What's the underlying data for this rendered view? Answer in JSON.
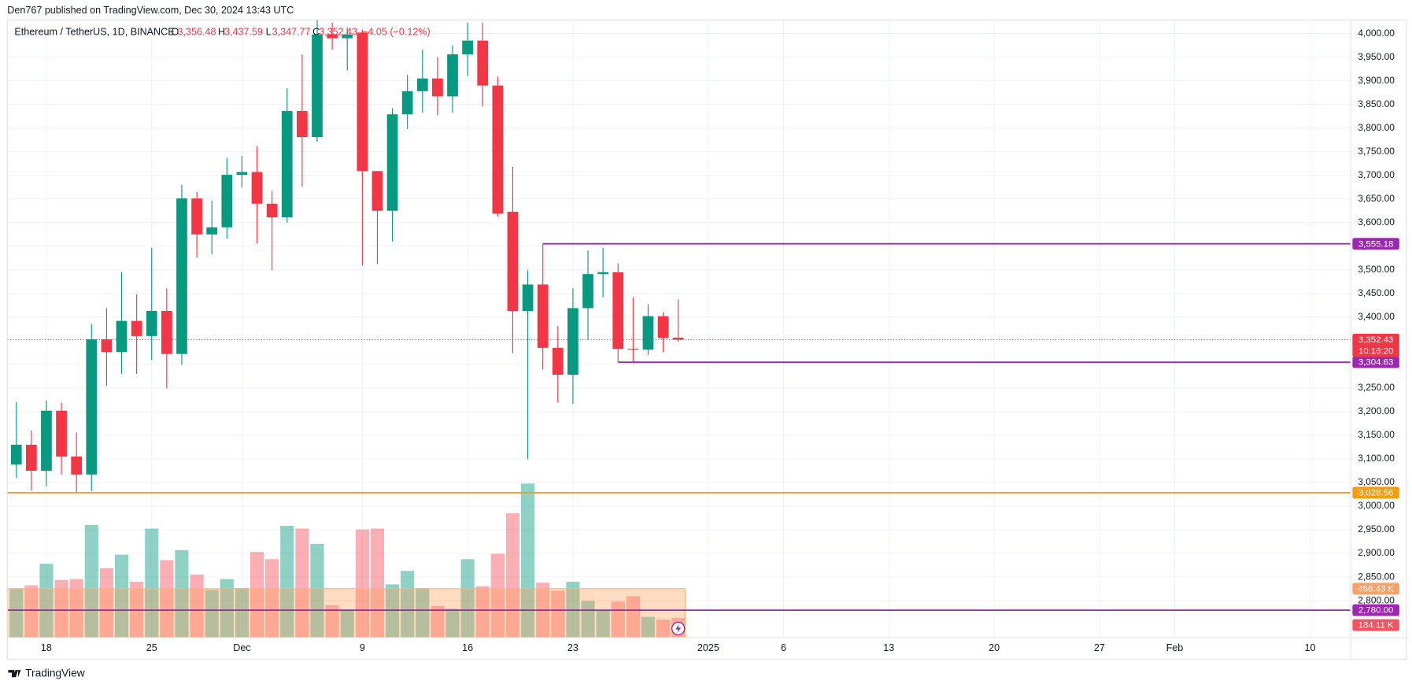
{
  "chart_data": {
    "type": "candlestick",
    "header": "Den767 published on TradingView.com, Dec 30, 2024 13:43 UTC",
    "title": "Ethereum / TetherUS, 1D, BINANCE",
    "ohlc_letters": [
      "O",
      "H",
      "L",
      "C"
    ],
    "last_labels": [
      "3,356.48",
      "3,437.59",
      "3,347.77",
      "3,352.43"
    ],
    "change_label": "−4.05 (−0.12%)",
    "countdown": "10:16:20",
    "brand": "TradingView",
    "up_color": "#089981",
    "down_color": "#f23645",
    "x": [
      "2024-11-16",
      "2024-11-17",
      "2024-11-18",
      "2024-11-19",
      "2024-11-20",
      "2024-11-21",
      "2024-11-22",
      "2024-11-23",
      "2024-11-24",
      "2024-11-25",
      "2024-11-26",
      "2024-11-27",
      "2024-11-28",
      "2024-11-29",
      "2024-11-30",
      "2024-12-01",
      "2024-12-02",
      "2024-12-03",
      "2024-12-04",
      "2024-12-05",
      "2024-12-06",
      "2024-12-07",
      "2024-12-08",
      "2024-12-09",
      "2024-12-10",
      "2024-12-11",
      "2024-12-12",
      "2024-12-13",
      "2024-12-14",
      "2024-12-15",
      "2024-12-16",
      "2024-12-17",
      "2024-12-18",
      "2024-12-19",
      "2024-12-20",
      "2024-12-21",
      "2024-12-22",
      "2024-12-23",
      "2024-12-24",
      "2024-12-25",
      "2024-12-26",
      "2024-12-27",
      "2024-12-28",
      "2024-12-29",
      "2024-12-30"
    ],
    "open": [
      3088,
      3130,
      3075,
      3202,
      3105,
      3067,
      3353,
      3326,
      3392,
      3360,
      3413,
      3322,
      3651,
      3575,
      3590,
      3701,
      3707,
      3640,
      3611,
      3836,
      3781,
      3998,
      3990,
      4002,
      3709,
      3625,
      3829,
      3878,
      3905,
      3867,
      3956,
      3985,
      3890,
      3623,
      3413,
      3469,
      3335,
      3278,
      3419,
      3491,
      3495,
      3333,
      3331,
      3402,
      3356.48
    ],
    "high": [
      3220,
      3160,
      3223,
      3219,
      3156,
      3385,
      3419,
      3495,
      3448,
      3547,
      3461,
      3680,
      3665,
      3646,
      3737,
      3741,
      3762,
      3667,
      3884,
      3956,
      4029,
      4023,
      4013,
      4008,
      3709,
      3842,
      3912,
      3966,
      3950,
      3975,
      4023,
      4023,
      3909,
      3718,
      3499,
      3555,
      3381,
      3461,
      3541,
      3547,
      3514,
      3442,
      3427,
      3410,
      3437.59
    ],
    "low": [
      3060,
      3033,
      3042,
      3067,
      3027,
      3032,
      3255,
      3280,
      3280,
      3309,
      3249,
      3299,
      3526,
      3533,
      3566,
      3674,
      3556,
      3499,
      3600,
      3676,
      3771,
      3966,
      3922,
      3509,
      3512,
      3560,
      3798,
      3832,
      3827,
      3832,
      3910,
      3846,
      3613,
      3324,
      3099,
      3289,
      3219,
      3217,
      3352,
      3442,
      3305,
      3305,
      3320,
      3326,
      3347.77
    ],
    "close": [
      3130,
      3075,
      3202,
      3105,
      3067,
      3353,
      3326,
      3392,
      3360,
      3413,
      3322,
      3651,
      3575,
      3590,
      3701,
      3707,
      3640,
      3611,
      3836,
      3781,
      3998,
      3990,
      3998,
      3709,
      3625,
      3829,
      3878,
      3905,
      3867,
      3956,
      3985,
      3890,
      3619,
      3413,
      3469,
      3335,
      3278,
      3419,
      3491,
      3495,
      3333,
      3331,
      3402,
      3356,
      3352.43
    ],
    "volume": [
      454,
      487,
      689,
      538,
      546,
      1050,
      647,
      773,
      521,
      1016,
      722,
      815,
      588,
      445,
      546,
      462,
      798,
      731,
      1042,
      1016,
      874,
      302,
      260,
      1008,
      1016,
      496,
      622,
      462,
      294,
      269,
      731,
      479,
      781,
      1159,
      1436,
      512,
      437,
      521,
      344,
      252,
      336,
      386,
      193,
      168,
      184.11
    ],
    "volume_label": "184.11 K",
    "volume_ma": 456.43,
    "volume_ma_label": "456.43 K",
    "levels": [
      {
        "value": 3555.18,
        "label": "3,555.18",
        "color": "#9c27b0",
        "start": "2024-12-21"
      },
      {
        "value": 3304.63,
        "label": "3,304.63",
        "color": "#9c27b0",
        "start": "2024-12-26"
      },
      {
        "value": 3028.56,
        "label": "3,028.56",
        "color": "#f59d0f"
      },
      {
        "value": 2780.0,
        "label": "2,780.00",
        "color": "#9c27b0"
      }
    ],
    "xlim": [
      "2024-11-15",
      "2025-02-13"
    ],
    "xticks": [
      {
        "value": "2024-11-18",
        "label": "18"
      },
      {
        "value": "2024-11-25",
        "label": "25"
      },
      {
        "value": "2024-12-01",
        "label": "Dec"
      },
      {
        "value": "2024-12-09",
        "label": "9"
      },
      {
        "value": "2024-12-16",
        "label": "16"
      },
      {
        "value": "2024-12-23",
        "label": "23"
      },
      {
        "value": "2025-01-01",
        "label": "2025"
      },
      {
        "value": "2025-01-06",
        "label": "6"
      },
      {
        "value": "2025-01-13",
        "label": "13"
      },
      {
        "value": "2025-01-20",
        "label": "20"
      },
      {
        "value": "2025-01-27",
        "label": "27"
      },
      {
        "value": "2025-02-01",
        "label": "Feb"
      },
      {
        "value": "2025-02-10",
        "label": "10"
      }
    ],
    "ylim": [
      2722,
      4029
    ],
    "yticks": [
      {
        "value": 2800,
        "label": "2,800.00"
      },
      {
        "value": 2850,
        "label": "2,850.00"
      },
      {
        "value": 2900,
        "label": "2,900.00"
      },
      {
        "value": 2950,
        "label": "2,950.00"
      },
      {
        "value": 3000,
        "label": "3,000.00"
      },
      {
        "value": 3050,
        "label": "3,050.00"
      },
      {
        "value": 3100,
        "label": "3,100.00"
      },
      {
        "value": 3150,
        "label": "3,150.00"
      },
      {
        "value": 3200,
        "label": "3,200.00"
      },
      {
        "value": 3250,
        "label": "3,250.00"
      },
      {
        "value": 3300,
        "label": "3,300.00"
      },
      {
        "value": 3350,
        "label": "3,350.00"
      },
      {
        "value": 3400,
        "label": "3,400.00"
      },
      {
        "value": 3450,
        "label": "3,450.00"
      },
      {
        "value": 3500,
        "label": "3,500.00"
      },
      {
        "value": 3550,
        "label": "3,550.00"
      },
      {
        "value": 3600,
        "label": "3,600.00"
      },
      {
        "value": 3650,
        "label": "3,650.00"
      },
      {
        "value": 3700,
        "label": "3,700.00"
      },
      {
        "value": 3750,
        "label": "3,750.00"
      },
      {
        "value": 3800,
        "label": "3,800.00"
      },
      {
        "value": 3850,
        "label": "3,850.00"
      },
      {
        "value": 3900,
        "label": "3,900.00"
      },
      {
        "value": 3950,
        "label": "3,950.00"
      },
      {
        "value": 4000,
        "label": "4,000.00"
      }
    ],
    "grid": true
  }
}
